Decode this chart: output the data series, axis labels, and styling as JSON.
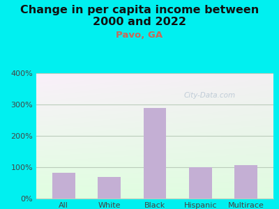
{
  "title_line1": "Change in per capita income between",
  "title_line2": "2000 and 2022",
  "subtitle": "Pavo, GA",
  "categories": [
    "All",
    "White",
    "Black",
    "Hispanic",
    "Multirace"
  ],
  "values": [
    83,
    70,
    290,
    100,
    107
  ],
  "bar_color": "#c4afd4",
  "title_fontsize": 11.5,
  "subtitle_fontsize": 9.5,
  "subtitle_color": "#cc6655",
  "title_color": "#111111",
  "background_outer": "#00f0f0",
  "ylim": [
    0,
    400
  ],
  "yticks": [
    0,
    100,
    200,
    300,
    400
  ],
  "watermark": "City-Data.com",
  "tick_color": "#444444",
  "tick_fontsize": 8,
  "grid_color": "#bbccbb",
  "grid_linewidth": 0.8
}
